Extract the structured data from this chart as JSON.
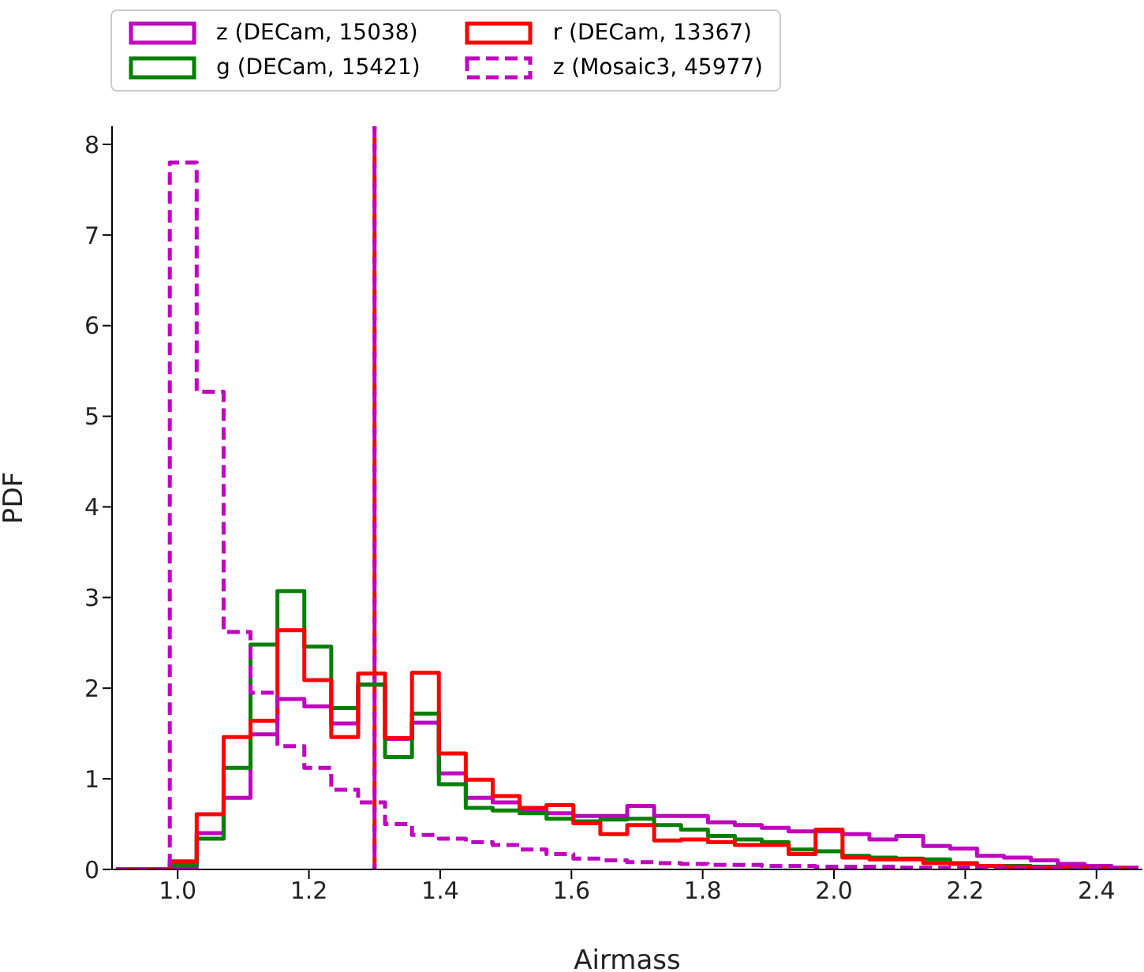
{
  "chart_data": {
    "type": "histogram",
    "xlabel": "Airmass",
    "ylabel": "PDF",
    "bins": [
      0.906,
      0.947,
      0.988,
      1.029,
      1.07,
      1.111,
      1.152,
      1.193,
      1.234,
      1.275,
      1.316,
      1.357,
      1.398,
      1.439,
      1.48,
      1.521,
      1.562,
      1.603,
      1.644,
      1.685,
      1.726,
      1.767,
      1.808,
      1.849,
      1.89,
      1.931,
      1.972,
      2.013,
      2.054,
      2.095,
      2.136,
      2.177,
      2.218,
      2.259,
      2.3,
      2.341,
      2.382,
      2.423,
      2.464
    ],
    "series": [
      {
        "name": "z (DECam, 15038)",
        "color": "#bf00bf",
        "line_style": "solid",
        "values": [
          0,
          0,
          0.02,
          0.4,
          0.79,
          1.49,
          1.88,
          1.8,
          1.61,
          2.04,
          1.44,
          1.62,
          1.06,
          0.79,
          0.74,
          0.65,
          0.62,
          0.59,
          0.59,
          0.7,
          0.59,
          0.59,
          0.52,
          0.49,
          0.46,
          0.42,
          0.42,
          0.39,
          0.33,
          0.37,
          0.26,
          0.23,
          0.15,
          0.13,
          0.1,
          0.06,
          0.04,
          0.02
        ]
      },
      {
        "name": "g (DECam, 15421)",
        "color": "#008000",
        "line_style": "solid",
        "values": [
          0,
          0,
          0.05,
          0.34,
          1.12,
          2.48,
          3.07,
          2.46,
          1.78,
          2.04,
          1.24,
          1.72,
          0.94,
          0.68,
          0.65,
          0.62,
          0.56,
          0.53,
          0.55,
          0.56,
          0.49,
          0.44,
          0.37,
          0.33,
          0.3,
          0.22,
          0.2,
          0.15,
          0.13,
          0.12,
          0.11,
          0.07,
          0.04,
          0.04,
          0.03,
          0.02,
          0.01,
          0.01
        ]
      },
      {
        "name": "r (DECam, 13367)",
        "color": "#ff0000",
        "line_style": "solid",
        "values": [
          0,
          0,
          0.09,
          0.61,
          1.46,
          1.64,
          2.64,
          2.09,
          1.46,
          2.16,
          1.45,
          2.17,
          1.28,
          0.99,
          0.81,
          0.68,
          0.71,
          0.51,
          0.39,
          0.49,
          0.32,
          0.33,
          0.3,
          0.27,
          0.27,
          0.17,
          0.44,
          0.13,
          0.11,
          0.11,
          0.07,
          0.06,
          0.04,
          0.03,
          0.02,
          0.02,
          0.01,
          0.01
        ]
      },
      {
        "name": "z (Mosaic3, 45977)",
        "color": "#c000c0",
        "line_style": "dashed",
        "values": [
          0,
          0,
          7.8,
          5.27,
          2.62,
          1.95,
          1.36,
          1.12,
          0.88,
          0.74,
          0.5,
          0.38,
          0.34,
          0.3,
          0.27,
          0.22,
          0.17,
          0.12,
          0.1,
          0.08,
          0.07,
          0.06,
          0.05,
          0.05,
          0.04,
          0.04,
          0.03,
          0.03,
          0.03,
          0.02,
          0.02,
          0.02,
          0.01,
          0.01,
          0.01,
          0.01,
          0.01,
          0.01
        ]
      }
    ],
    "ref_lines": [
      {
        "axis": "x",
        "value": 1.3,
        "color": "#ff0000",
        "line_style": "dashed"
      },
      {
        "axis": "x",
        "value": 1.3,
        "color": "#bf00bf",
        "line_style": "dashed"
      }
    ],
    "xlim": [
      0.9,
      2.47
    ],
    "xticks": [
      {
        "value": 1,
        "label": "1.0"
      },
      1.2,
      1.4,
      1.6,
      1.8,
      {
        "value": 2,
        "label": "2.0"
      },
      2.2,
      2.4
    ],
    "ylim": [
      0,
      8.2
    ],
    "yticks": [
      0,
      1,
      2,
      3,
      4,
      5,
      6,
      7,
      8
    ],
    "grid": false,
    "legend": "top"
  }
}
